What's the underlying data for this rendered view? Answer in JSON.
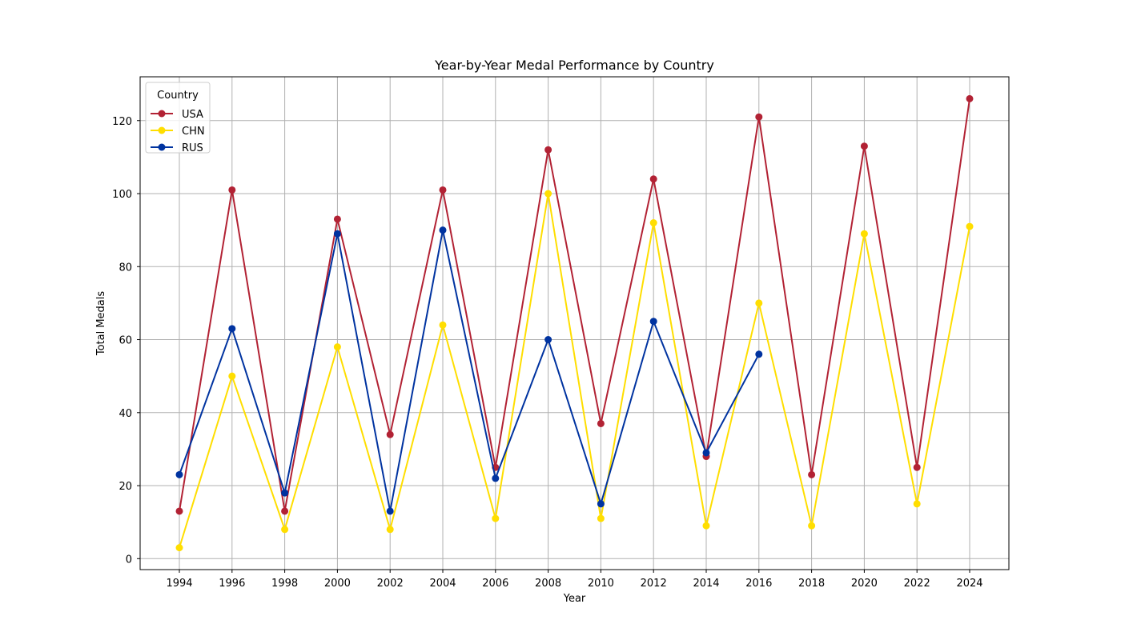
{
  "chart_data": {
    "type": "line",
    "title": "Year-by-Year Medal Performance by Country",
    "xlabel": "Year",
    "ylabel": "Total Medals",
    "x": [
      1994,
      1996,
      1998,
      2000,
      2002,
      2004,
      2006,
      2008,
      2010,
      2012,
      2014,
      2016,
      2018,
      2020,
      2022,
      2024
    ],
    "ylim": [
      -3,
      132
    ],
    "yticks": [
      0,
      20,
      40,
      60,
      80,
      100,
      120
    ],
    "grid": true,
    "legend": {
      "title": "Country",
      "placement": "top-left"
    },
    "series": [
      {
        "name": "USA",
        "color": "#b22234",
        "values": [
          13,
          101,
          13,
          93,
          34,
          101,
          25,
          112,
          37,
          104,
          28,
          121,
          23,
          113,
          25,
          126
        ]
      },
      {
        "name": "CHN",
        "color": "#ffde00",
        "values": [
          3,
          50,
          8,
          58,
          8,
          64,
          11,
          100,
          11,
          92,
          9,
          70,
          9,
          89,
          15,
          91
        ]
      },
      {
        "name": "RUS",
        "color": "#0033a0",
        "values": [
          23,
          63,
          18,
          89,
          13,
          90,
          22,
          60,
          15,
          65,
          29,
          56,
          null,
          null,
          null,
          null
        ]
      }
    ]
  }
}
